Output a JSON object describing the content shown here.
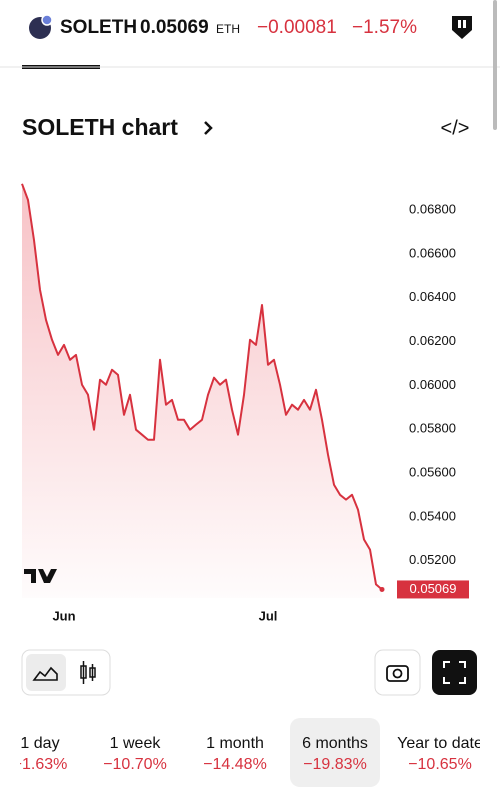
{
  "header": {
    "symbol": "SOLETH",
    "price": "0.05069",
    "unit": "ETH",
    "change": "−0.00081",
    "change_pct": "−1.57%"
  },
  "chart_title": "SOLETH chart",
  "chart_data": {
    "type": "area",
    "categories": [
      null,
      null,
      null,
      null,
      null,
      null,
      null,
      "Jun",
      null,
      null,
      null,
      null,
      null,
      null,
      null,
      null,
      null,
      null,
      null,
      null,
      null,
      null,
      null,
      null,
      null,
      null,
      null,
      null,
      null,
      null,
      null,
      null,
      null,
      null,
      null,
      null,
      null,
      null,
      null,
      null,
      null,
      "Jul",
      null,
      null,
      null,
      null,
      null,
      null,
      null,
      null,
      null,
      null,
      null,
      null,
      null,
      null,
      null,
      null,
      null,
      null,
      null
    ],
    "series": [
      {
        "name": "SOLETH",
        "color": "#d7323f",
        "values": [
          0.0692,
          0.06846,
          0.06663,
          0.06436,
          0.06299,
          0.06208,
          0.06139,
          0.06185,
          0.06117,
          0.06139,
          0.06003,
          0.05957,
          0.05798,
          0.06026,
          0.06003,
          0.06071,
          0.06048,
          0.05866,
          0.05957,
          0.05798,
          0.05775,
          0.05752,
          0.05752,
          0.06117,
          0.05912,
          0.05934,
          0.05843,
          0.05843,
          0.05798,
          0.05821,
          0.05843,
          0.05957,
          0.06035,
          0.06003,
          0.06026,
          0.05889,
          0.05775,
          0.05957,
          0.06208,
          0.06185,
          0.06367,
          0.06094,
          0.06117,
          0.06003,
          0.05866,
          0.05912,
          0.05889,
          0.05934,
          0.05889,
          0.0598,
          0.05843,
          0.05684,
          0.05547,
          0.05501,
          0.05479,
          0.05501,
          0.05433,
          0.05297,
          0.05251,
          0.05092,
          0.05069
        ]
      }
    ],
    "ylim": [
      0.0503,
      0.0696
    ],
    "yticks": [
      {
        "value": 0.052,
        "label": "0.05200"
      },
      {
        "value": 0.054,
        "label": "0.05400"
      },
      {
        "value": 0.056,
        "label": "0.05600"
      },
      {
        "value": 0.058,
        "label": "0.05800"
      },
      {
        "value": 0.06,
        "label": "0.06000"
      },
      {
        "value": 0.062,
        "label": "0.06200"
      },
      {
        "value": 0.064,
        "label": "0.06400"
      },
      {
        "value": 0.066,
        "label": "0.06600"
      },
      {
        "value": 0.068,
        "label": "0.06800"
      }
    ],
    "grid": false
  },
  "periods": [
    {
      "label": "1 day",
      "change": "−1.63%"
    },
    {
      "label": "1 week",
      "change": "−10.70%"
    },
    {
      "label": "1 month",
      "change": "−14.48%"
    },
    {
      "label": "6 months",
      "change": "−19.83%",
      "selected": true
    },
    {
      "label": "Year to date",
      "change": "−10.65%"
    }
  ]
}
